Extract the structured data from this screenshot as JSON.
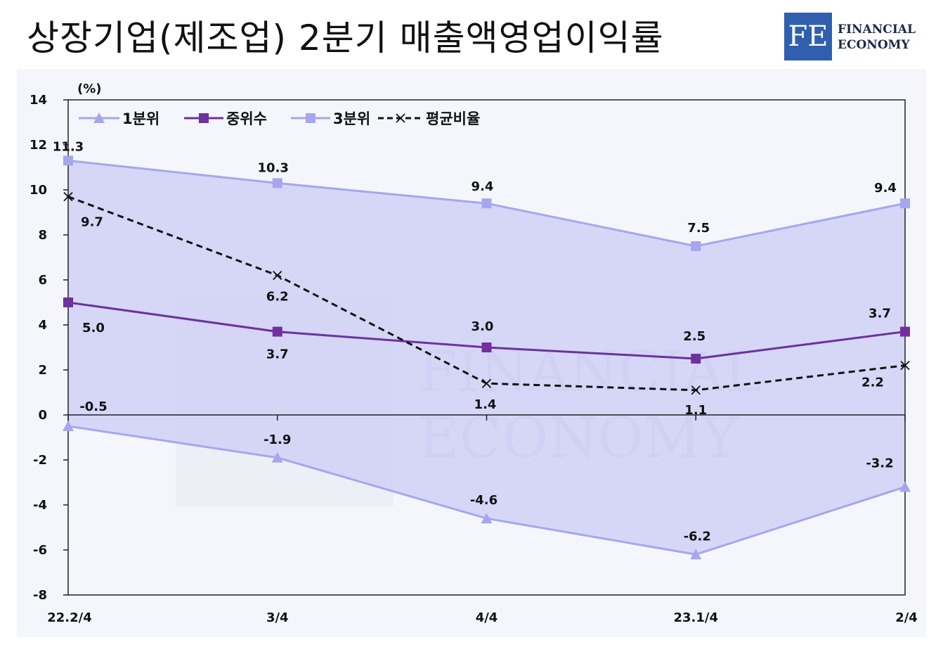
{
  "header": {
    "title": "상장기업(제조업) 2분기 매출액영업이익률",
    "logo": {
      "mark": "FE",
      "line1": "FINANCIAL",
      "line2": "ECONOMY"
    }
  },
  "colors": {
    "q1": "#a6a6ee",
    "median": "#7030a0",
    "q3": "#a6a6ee",
    "average": "#111111",
    "band": "#ccccf6"
  },
  "chart_data": {
    "type": "line",
    "unit_label": "(%)",
    "categories": [
      "22.2/4",
      "3/4",
      "4/4",
      "23.1/4",
      "2/4"
    ],
    "ylim": [
      -8,
      14
    ],
    "yticks": [
      14,
      12,
      10,
      8,
      6,
      4,
      2,
      0,
      -2,
      -4,
      -6,
      -8
    ],
    "legend_position": "top-left",
    "grid": false,
    "series": [
      {
        "key": "q1",
        "name": "1분위",
        "marker": "triangle",
        "values": [
          -0.5,
          -1.9,
          -4.6,
          -6.2,
          -3.2
        ],
        "labels": [
          "-0.5",
          "-1.9",
          "-4.6",
          "-6.2",
          "-3.2"
        ]
      },
      {
        "key": "median",
        "name": "중위수",
        "marker": "square",
        "values": [
          5.0,
          3.7,
          3.0,
          2.5,
          3.7
        ],
        "labels": [
          "5.0",
          "3.7",
          "3.0",
          "2.5",
          "3.7"
        ]
      },
      {
        "key": "q3",
        "name": "3분위",
        "marker": "square",
        "values": [
          11.3,
          10.3,
          9.4,
          7.5,
          9.4
        ],
        "labels": [
          "11.3",
          "10.3",
          "9.4",
          "7.5",
          "9.4"
        ]
      },
      {
        "key": "average",
        "name": "평균비율",
        "marker": "x",
        "dashed": true,
        "values": [
          9.7,
          6.2,
          1.4,
          1.1,
          2.2
        ],
        "labels": [
          "9.7",
          "6.2",
          "1.4",
          "1.1",
          "2.2"
        ]
      }
    ]
  }
}
